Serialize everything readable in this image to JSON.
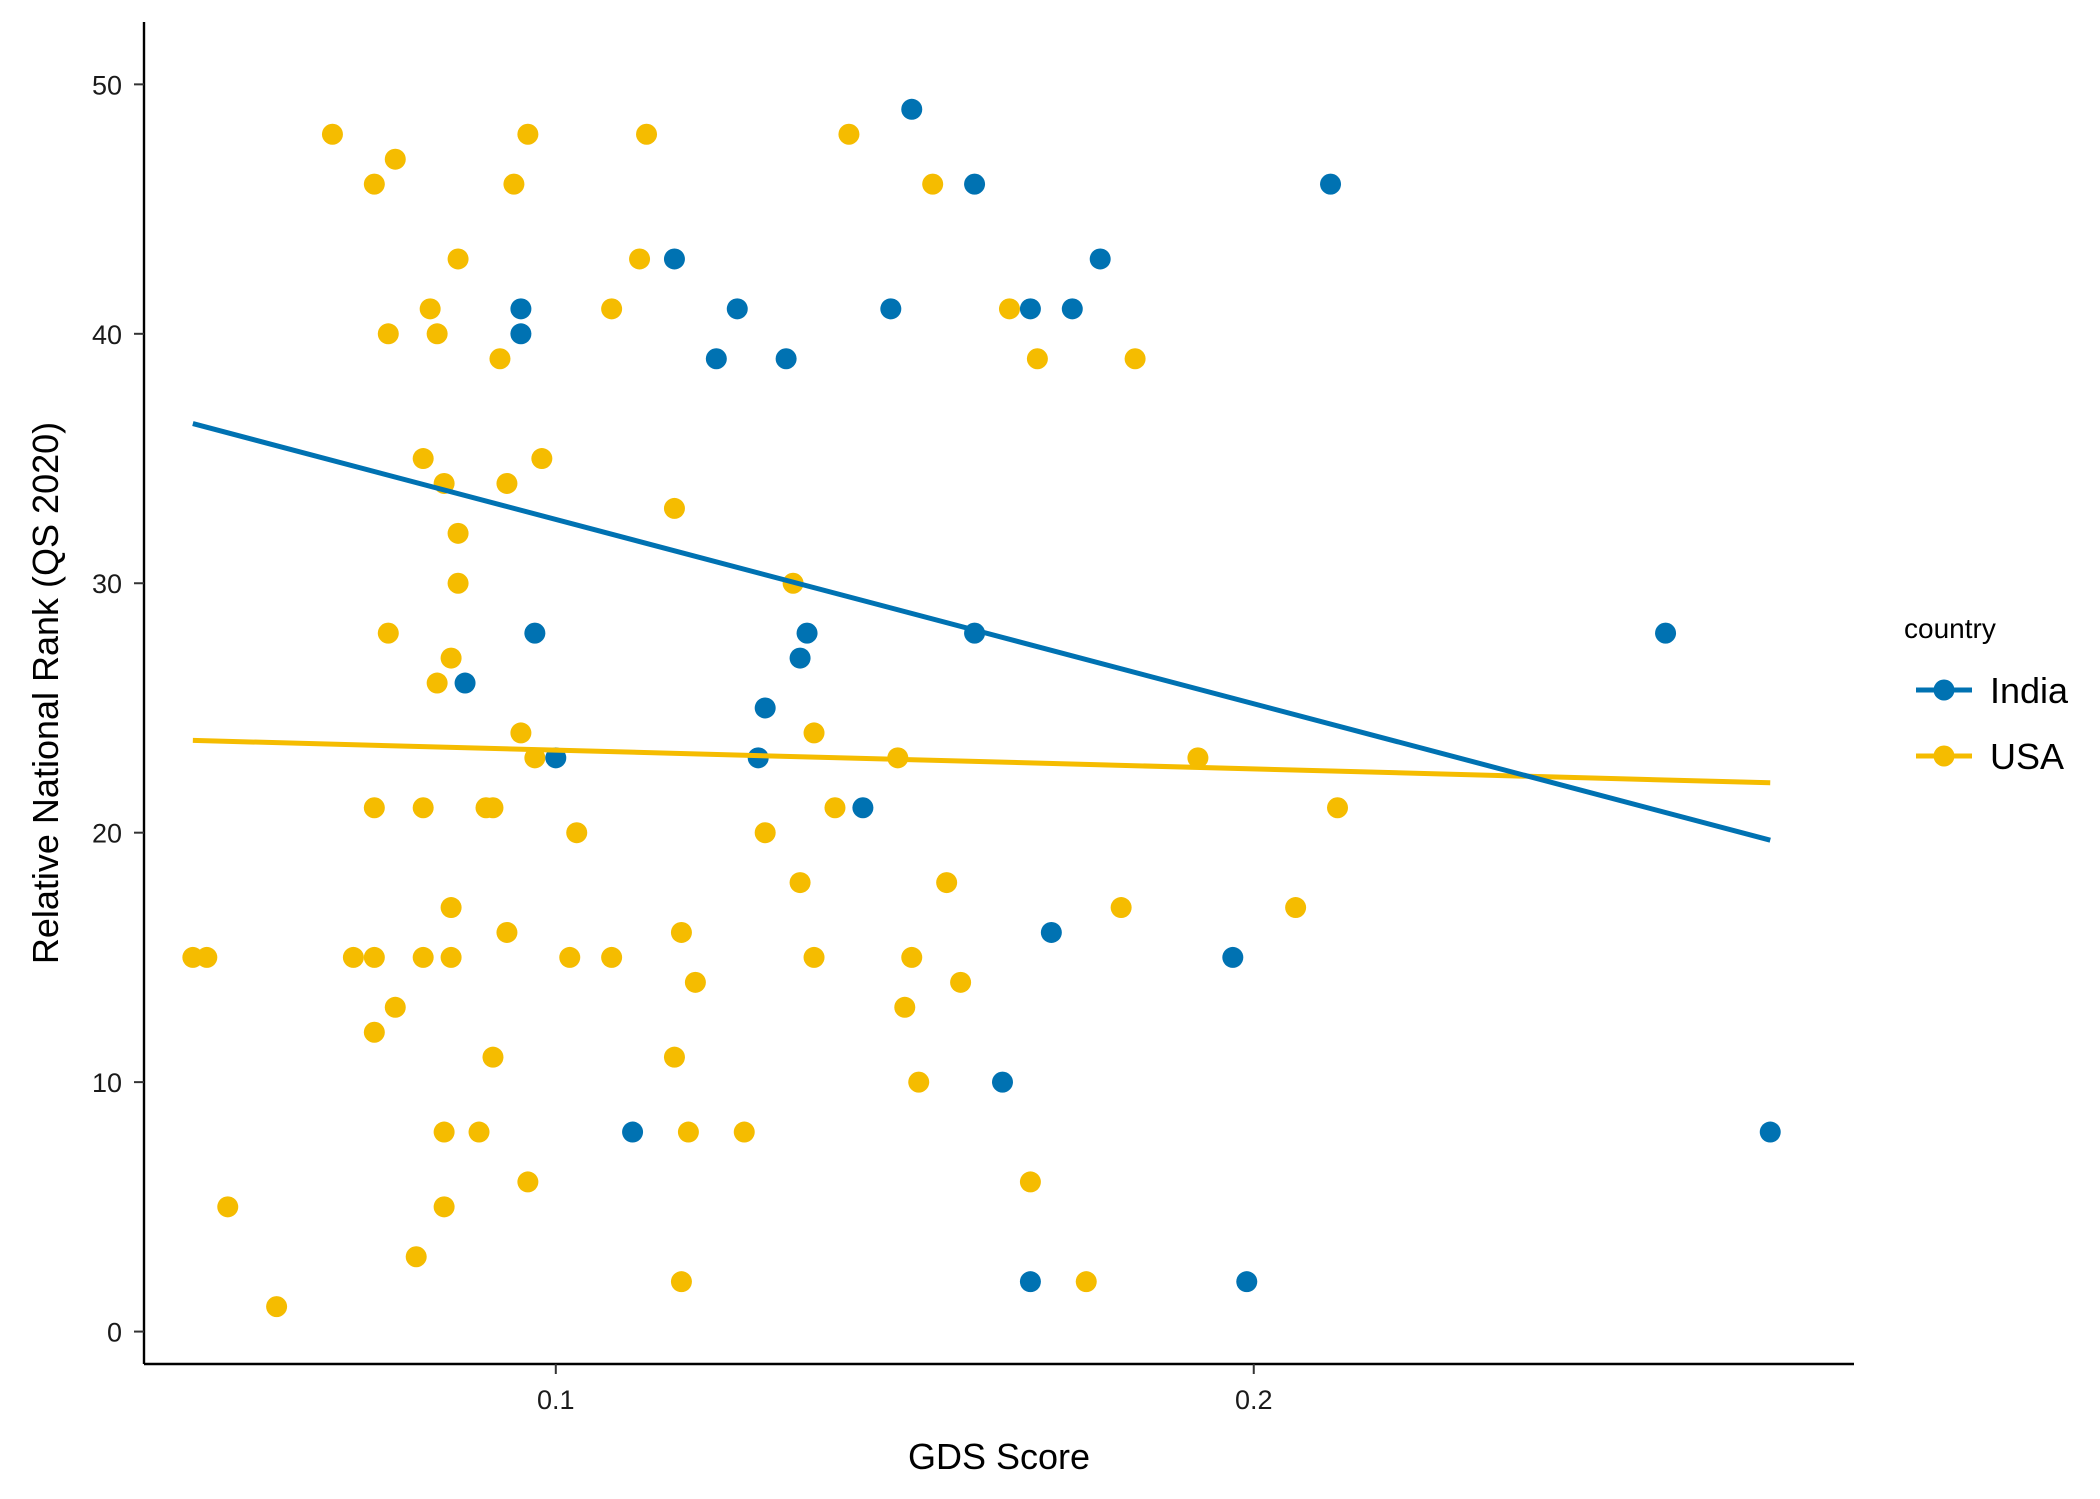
{
  "chart_data": {
    "type": "scatter",
    "title": "",
    "xlabel": "GDS Score",
    "ylabel": "Relative National Rank (QS 2020)",
    "xlim": [
      0.041,
      0.286
    ],
    "ylim": [
      -1.3,
      52.5
    ],
    "x_ticks": [
      0.1,
      0.2
    ],
    "x_tick_labels": [
      "0.1",
      "0.2"
    ],
    "y_ticks": [
      0,
      10,
      20,
      30,
      40,
      50
    ],
    "y_tick_labels": [
      "0",
      "10",
      "20",
      "30",
      "40",
      "50"
    ],
    "grid": false,
    "legend": {
      "title": "country",
      "position": "right"
    },
    "series": [
      {
        "name": "India",
        "color": "#0072B2",
        "points": [
          [
            0.151,
            49
          ],
          [
            0.16,
            46
          ],
          [
            0.211,
            46
          ],
          [
            0.117,
            43
          ],
          [
            0.178,
            43
          ],
          [
            0.095,
            41
          ],
          [
            0.126,
            41
          ],
          [
            0.148,
            41
          ],
          [
            0.168,
            41
          ],
          [
            0.174,
            41
          ],
          [
            0.095,
            40
          ],
          [
            0.123,
            39
          ],
          [
            0.133,
            39
          ],
          [
            0.097,
            28
          ],
          [
            0.136,
            28
          ],
          [
            0.16,
            28
          ],
          [
            0.259,
            28
          ],
          [
            0.135,
            27
          ],
          [
            0.087,
            26
          ],
          [
            0.13,
            25
          ],
          [
            0.1,
            23
          ],
          [
            0.129,
            23
          ],
          [
            0.144,
            21
          ],
          [
            0.197,
            15
          ],
          [
            0.171,
            16
          ],
          [
            0.164,
            10
          ],
          [
            0.111,
            8
          ],
          [
            0.274,
            8
          ],
          [
            0.168,
            2
          ],
          [
            0.199,
            2
          ]
        ],
        "trend": {
          "x": [
            0.048,
            0.274
          ],
          "y": [
            36.4,
            19.7
          ]
        }
      },
      {
        "name": "USA",
        "color": "#F5BC00",
        "points": [
          [
            0.068,
            48
          ],
          [
            0.096,
            48
          ],
          [
            0.113,
            48
          ],
          [
            0.142,
            48
          ],
          [
            0.074,
            46
          ],
          [
            0.077,
            47
          ],
          [
            0.094,
            46
          ],
          [
            0.154,
            46
          ],
          [
            0.086,
            43
          ],
          [
            0.112,
            43
          ],
          [
            0.082,
            41
          ],
          [
            0.108,
            41
          ],
          [
            0.165,
            41
          ],
          [
            0.076,
            40
          ],
          [
            0.083,
            40
          ],
          [
            0.092,
            39
          ],
          [
            0.169,
            39
          ],
          [
            0.183,
            39
          ],
          [
            0.081,
            35
          ],
          [
            0.098,
            35
          ],
          [
            0.084,
            34
          ],
          [
            0.093,
            34
          ],
          [
            0.117,
            33
          ],
          [
            0.086,
            32
          ],
          [
            0.086,
            30
          ],
          [
            0.134,
            30
          ],
          [
            0.076,
            28
          ],
          [
            0.085,
            27
          ],
          [
            0.083,
            26
          ],
          [
            0.095,
            24
          ],
          [
            0.137,
            24
          ],
          [
            0.097,
            23
          ],
          [
            0.149,
            23
          ],
          [
            0.192,
            23
          ],
          [
            0.074,
            21
          ],
          [
            0.081,
            21
          ],
          [
            0.09,
            21
          ],
          [
            0.091,
            21
          ],
          [
            0.14,
            21
          ],
          [
            0.212,
            21
          ],
          [
            0.103,
            20
          ],
          [
            0.13,
            20
          ],
          [
            0.135,
            18
          ],
          [
            0.156,
            18
          ],
          [
            0.085,
            17
          ],
          [
            0.181,
            17
          ],
          [
            0.206,
            17
          ],
          [
            0.093,
            16
          ],
          [
            0.118,
            16
          ],
          [
            0.048,
            15
          ],
          [
            0.05,
            15
          ],
          [
            0.071,
            15
          ],
          [
            0.074,
            15
          ],
          [
            0.081,
            15
          ],
          [
            0.085,
            15
          ],
          [
            0.102,
            15
          ],
          [
            0.108,
            15
          ],
          [
            0.137,
            15
          ],
          [
            0.151,
            15
          ],
          [
            0.158,
            14
          ],
          [
            0.12,
            14
          ],
          [
            0.077,
            13
          ],
          [
            0.15,
            13
          ],
          [
            0.074,
            12
          ],
          [
            0.091,
            11
          ],
          [
            0.117,
            11
          ],
          [
            0.152,
            10
          ],
          [
            0.084,
            8
          ],
          [
            0.089,
            8
          ],
          [
            0.119,
            8
          ],
          [
            0.127,
            8
          ],
          [
            0.096,
            6
          ],
          [
            0.168,
            6
          ],
          [
            0.053,
            5
          ],
          [
            0.084,
            5
          ],
          [
            0.08,
            3
          ],
          [
            0.118,
            2
          ],
          [
            0.176,
            2
          ],
          [
            0.06,
            1
          ]
        ],
        "trend": {
          "x": [
            0.048,
            0.274
          ],
          "y": [
            23.7,
            22.0
          ]
        }
      }
    ]
  }
}
